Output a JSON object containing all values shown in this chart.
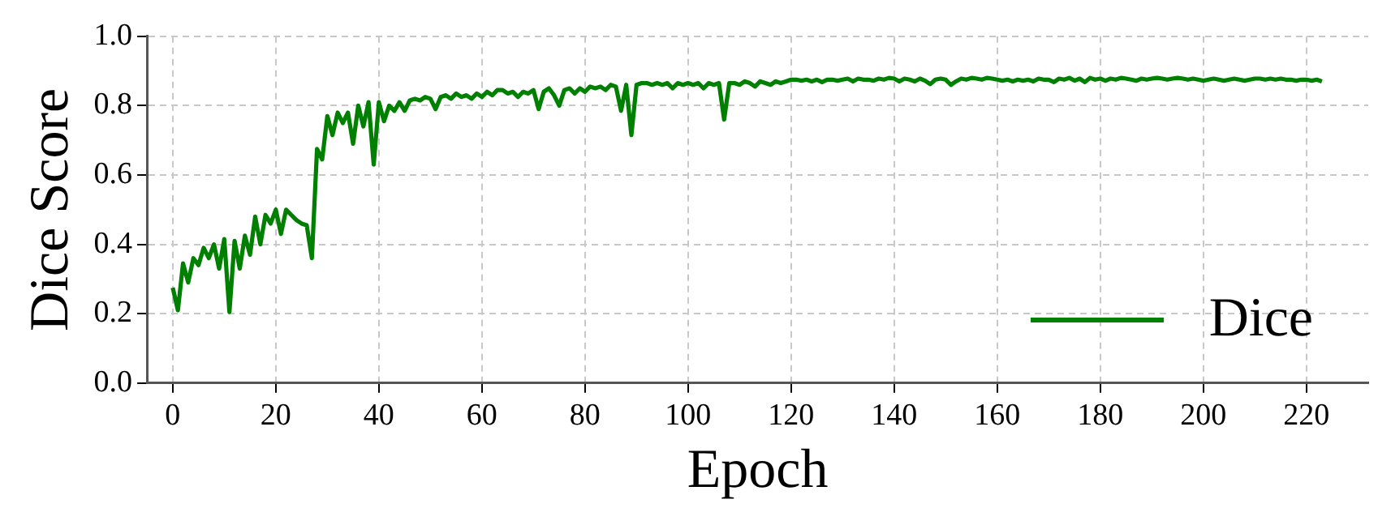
{
  "chart_data": {
    "type": "line",
    "xlabel": "Epoch",
    "ylabel": "Dice Score",
    "x": [
      0,
      1,
      2,
      3,
      4,
      5,
      6,
      7,
      8,
      9,
      10,
      11,
      12,
      13,
      14,
      15,
      16,
      17,
      18,
      19,
      20,
      21,
      22,
      23,
      24,
      25,
      26,
      27,
      28,
      29,
      30,
      31,
      32,
      33,
      34,
      35,
      36,
      37,
      38,
      39,
      40,
      41,
      42,
      43,
      44,
      45,
      46,
      47,
      48,
      49,
      50,
      51,
      52,
      53,
      54,
      55,
      56,
      57,
      58,
      59,
      60,
      61,
      62,
      63,
      64,
      65,
      66,
      67,
      68,
      69,
      70,
      71,
      72,
      73,
      74,
      75,
      76,
      77,
      78,
      79,
      80,
      81,
      82,
      83,
      84,
      85,
      86,
      87,
      88,
      89,
      90,
      91,
      92,
      93,
      94,
      95,
      96,
      97,
      98,
      99,
      100,
      101,
      102,
      103,
      104,
      105,
      106,
      107,
      108,
      109,
      110,
      111,
      112,
      113,
      114,
      115,
      116,
      117,
      118,
      119,
      120,
      121,
      122,
      123,
      124,
      125,
      126,
      127,
      128,
      129,
      130,
      131,
      132,
      133,
      134,
      135,
      136,
      137,
      138,
      139,
      140,
      141,
      142,
      143,
      144,
      145,
      146,
      147,
      148,
      149,
      150,
      151,
      152,
      153,
      154,
      155,
      156,
      157,
      158,
      159,
      160,
      161,
      162,
      163,
      164,
      165,
      166,
      167,
      168,
      169,
      170,
      171,
      172,
      173,
      174,
      175,
      176,
      177,
      178,
      179,
      180,
      181,
      182,
      183,
      184,
      185,
      186,
      187,
      188,
      189,
      190,
      191,
      192,
      193,
      194,
      195,
      196,
      197,
      198,
      199,
      200,
      201,
      202,
      203,
      204,
      205,
      206,
      207,
      208,
      209,
      210,
      211,
      212,
      213,
      214,
      215,
      216,
      217,
      218,
      219,
      220,
      221,
      222,
      223
    ],
    "series": [
      {
        "name": "Dice",
        "color": "#008000",
        "values": [
          0.275,
          0.21,
          0.345,
          0.29,
          0.36,
          0.34,
          0.39,
          0.36,
          0.4,
          0.33,
          0.415,
          0.205,
          0.41,
          0.33,
          0.425,
          0.37,
          0.48,
          0.4,
          0.485,
          0.46,
          0.5,
          0.43,
          0.5,
          0.485,
          0.47,
          0.46,
          0.455,
          0.36,
          0.675,
          0.645,
          0.77,
          0.715,
          0.78,
          0.75,
          0.78,
          0.69,
          0.8,
          0.74,
          0.81,
          0.63,
          0.81,
          0.755,
          0.8,
          0.785,
          0.81,
          0.785,
          0.815,
          0.82,
          0.815,
          0.825,
          0.82,
          0.79,
          0.825,
          0.83,
          0.82,
          0.835,
          0.825,
          0.83,
          0.82,
          0.835,
          0.825,
          0.84,
          0.83,
          0.845,
          0.845,
          0.835,
          0.84,
          0.825,
          0.84,
          0.835,
          0.845,
          0.79,
          0.84,
          0.85,
          0.83,
          0.8,
          0.845,
          0.85,
          0.835,
          0.85,
          0.84,
          0.855,
          0.85,
          0.855,
          0.845,
          0.86,
          0.855,
          0.785,
          0.86,
          0.715,
          0.86,
          0.865,
          0.865,
          0.86,
          0.865,
          0.86,
          0.865,
          0.85,
          0.865,
          0.86,
          0.865,
          0.86,
          0.865,
          0.85,
          0.865,
          0.86,
          0.865,
          0.76,
          0.865,
          0.865,
          0.86,
          0.87,
          0.865,
          0.855,
          0.87,
          0.865,
          0.86,
          0.87,
          0.865,
          0.87,
          0.875,
          0.875,
          0.872,
          0.875,
          0.87,
          0.875,
          0.868,
          0.875,
          0.875,
          0.872,
          0.875,
          0.878,
          0.87,
          0.878,
          0.875,
          0.875,
          0.872,
          0.878,
          0.875,
          0.88,
          0.878,
          0.87,
          0.878,
          0.875,
          0.87,
          0.878,
          0.872,
          0.862,
          0.875,
          0.878,
          0.875,
          0.86,
          0.87,
          0.878,
          0.875,
          0.88,
          0.878,
          0.875,
          0.88,
          0.878,
          0.875,
          0.872,
          0.875,
          0.87,
          0.875,
          0.872,
          0.875,
          0.87,
          0.878,
          0.875,
          0.875,
          0.868,
          0.878,
          0.875,
          0.88,
          0.872,
          0.878,
          0.868,
          0.88,
          0.875,
          0.878,
          0.872,
          0.878,
          0.875,
          0.88,
          0.878,
          0.875,
          0.872,
          0.878,
          0.875,
          0.878,
          0.88,
          0.878,
          0.875,
          0.878,
          0.88,
          0.878,
          0.875,
          0.878,
          0.875,
          0.872,
          0.875,
          0.878,
          0.875,
          0.872,
          0.875,
          0.878,
          0.875,
          0.872,
          0.875,
          0.878,
          0.878,
          0.875,
          0.878,
          0.875,
          0.878,
          0.875,
          0.875,
          0.872,
          0.875,
          0.875,
          0.872,
          0.875,
          0.87
        ]
      }
    ],
    "xlim": [
      -5,
      232
    ],
    "xticks": [
      0,
      20,
      40,
      60,
      80,
      100,
      120,
      140,
      160,
      180,
      200,
      220
    ],
    "ylim": [
      0,
      1
    ],
    "yticks": [
      {
        "value": 0,
        "label": "0.0"
      },
      {
        "value": 0.2,
        "label": "0.2"
      },
      {
        "value": 0.4,
        "label": "0.4"
      },
      {
        "value": 0.6,
        "label": "0.6"
      },
      {
        "value": 0.8,
        "label": "0.8"
      },
      {
        "value": 1,
        "label": "1.0"
      }
    ],
    "grid": true,
    "legend": "bottom right",
    "marker": "none",
    "line_style": "solid"
  }
}
